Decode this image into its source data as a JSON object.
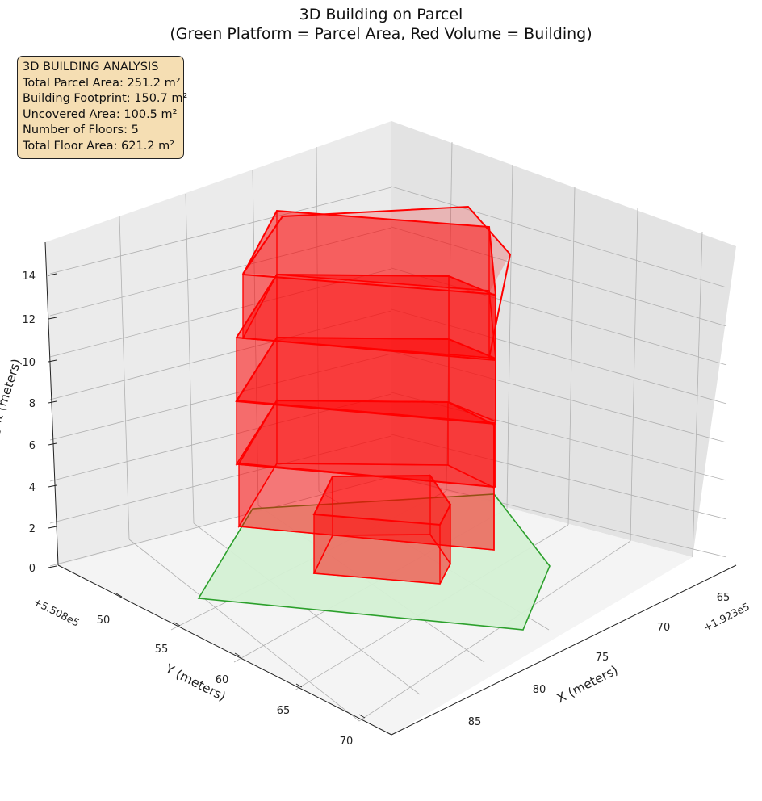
{
  "title": {
    "line1": "3D Building on Parcel",
    "line2": "(Green Platform = Parcel Area, Red Volume = Building)"
  },
  "info_box": {
    "heading": "3D BUILDING ANALYSIS",
    "lines": [
      "Total Parcel Area: 251.2 m²",
      "Building Footprint: 150.7 m²",
      "Uncovered Area: 100.5 m²",
      "Number of Floors: 5",
      "Total Floor Area: 621.2 m²"
    ],
    "background_color": "#f5deb3"
  },
  "chart_data": {
    "type": "3d-polygons",
    "xlabel": "X (meters)",
    "ylabel": "Y (meters)",
    "zlabel": "Height (meters)",
    "x_offset_label": "+1.923e5",
    "y_offset_label": "+5.508e5",
    "x_ticks": [
      "65",
      "70",
      "75",
      "80",
      "85"
    ],
    "y_ticks": [
      "50",
      "55",
      "60",
      "65",
      "70"
    ],
    "z_ticks": [
      "0",
      "2",
      "4",
      "6",
      "8",
      "10",
      "12",
      "14"
    ],
    "xlim": [
      63.5,
      88
    ],
    "ylim": [
      45,
      72
    ],
    "zlim": [
      0,
      15
    ],
    "parcel": {
      "color": "#2ca02c",
      "fill": "#d4f0d4",
      "vertices": [
        [
          69.3,
          47.2
        ],
        [
          85.9,
          61.3
        ],
        [
          84.6,
          69.1
        ],
        [
          72.0,
          68.1
        ]
      ]
    },
    "floors": [
      {
        "z": [
          0,
          3
        ],
        "vertices": [
          [
            69.8,
            52.1
          ],
          [
            71.0,
            54.6
          ],
          [
            68.7,
            57.5
          ],
          [
            67.4,
            54.9
          ]
        ]
      },
      {
        "z": [
          3,
          6
        ],
        "vertices": [
          [
            72.5,
            56.6
          ],
          [
            74.3,
            60.0
          ],
          [
            74.4,
            62.1
          ],
          [
            71.5,
            62.4
          ],
          [
            69.5,
            58.3
          ]
        ]
      },
      {
        "z": [
          6,
          9
        ],
        "vertices": [
          [
            72.1,
            56.2
          ],
          [
            74.2,
            60.0
          ],
          [
            74.4,
            62.1
          ],
          [
            71.5,
            62.4
          ],
          [
            69.5,
            58.3
          ]
        ]
      },
      {
        "z": [
          9,
          12
        ],
        "vertices": [
          [
            72.1,
            56.2
          ],
          [
            74.2,
            60.0
          ],
          [
            74.4,
            62.1
          ],
          [
            71.5,
            62.4
          ],
          [
            69.5,
            58.3
          ]
        ]
      },
      {
        "z": [
          12,
          15
        ],
        "vertices": [
          [
            72.1,
            56.2
          ],
          [
            74.2,
            60.0
          ],
          [
            74.4,
            62.1
          ],
          [
            71.5,
            62.4
          ],
          [
            69.5,
            58.3
          ]
        ]
      }
    ],
    "building_color": "#ff0000",
    "building_fill": "#ff0000",
    "grid": true
  }
}
